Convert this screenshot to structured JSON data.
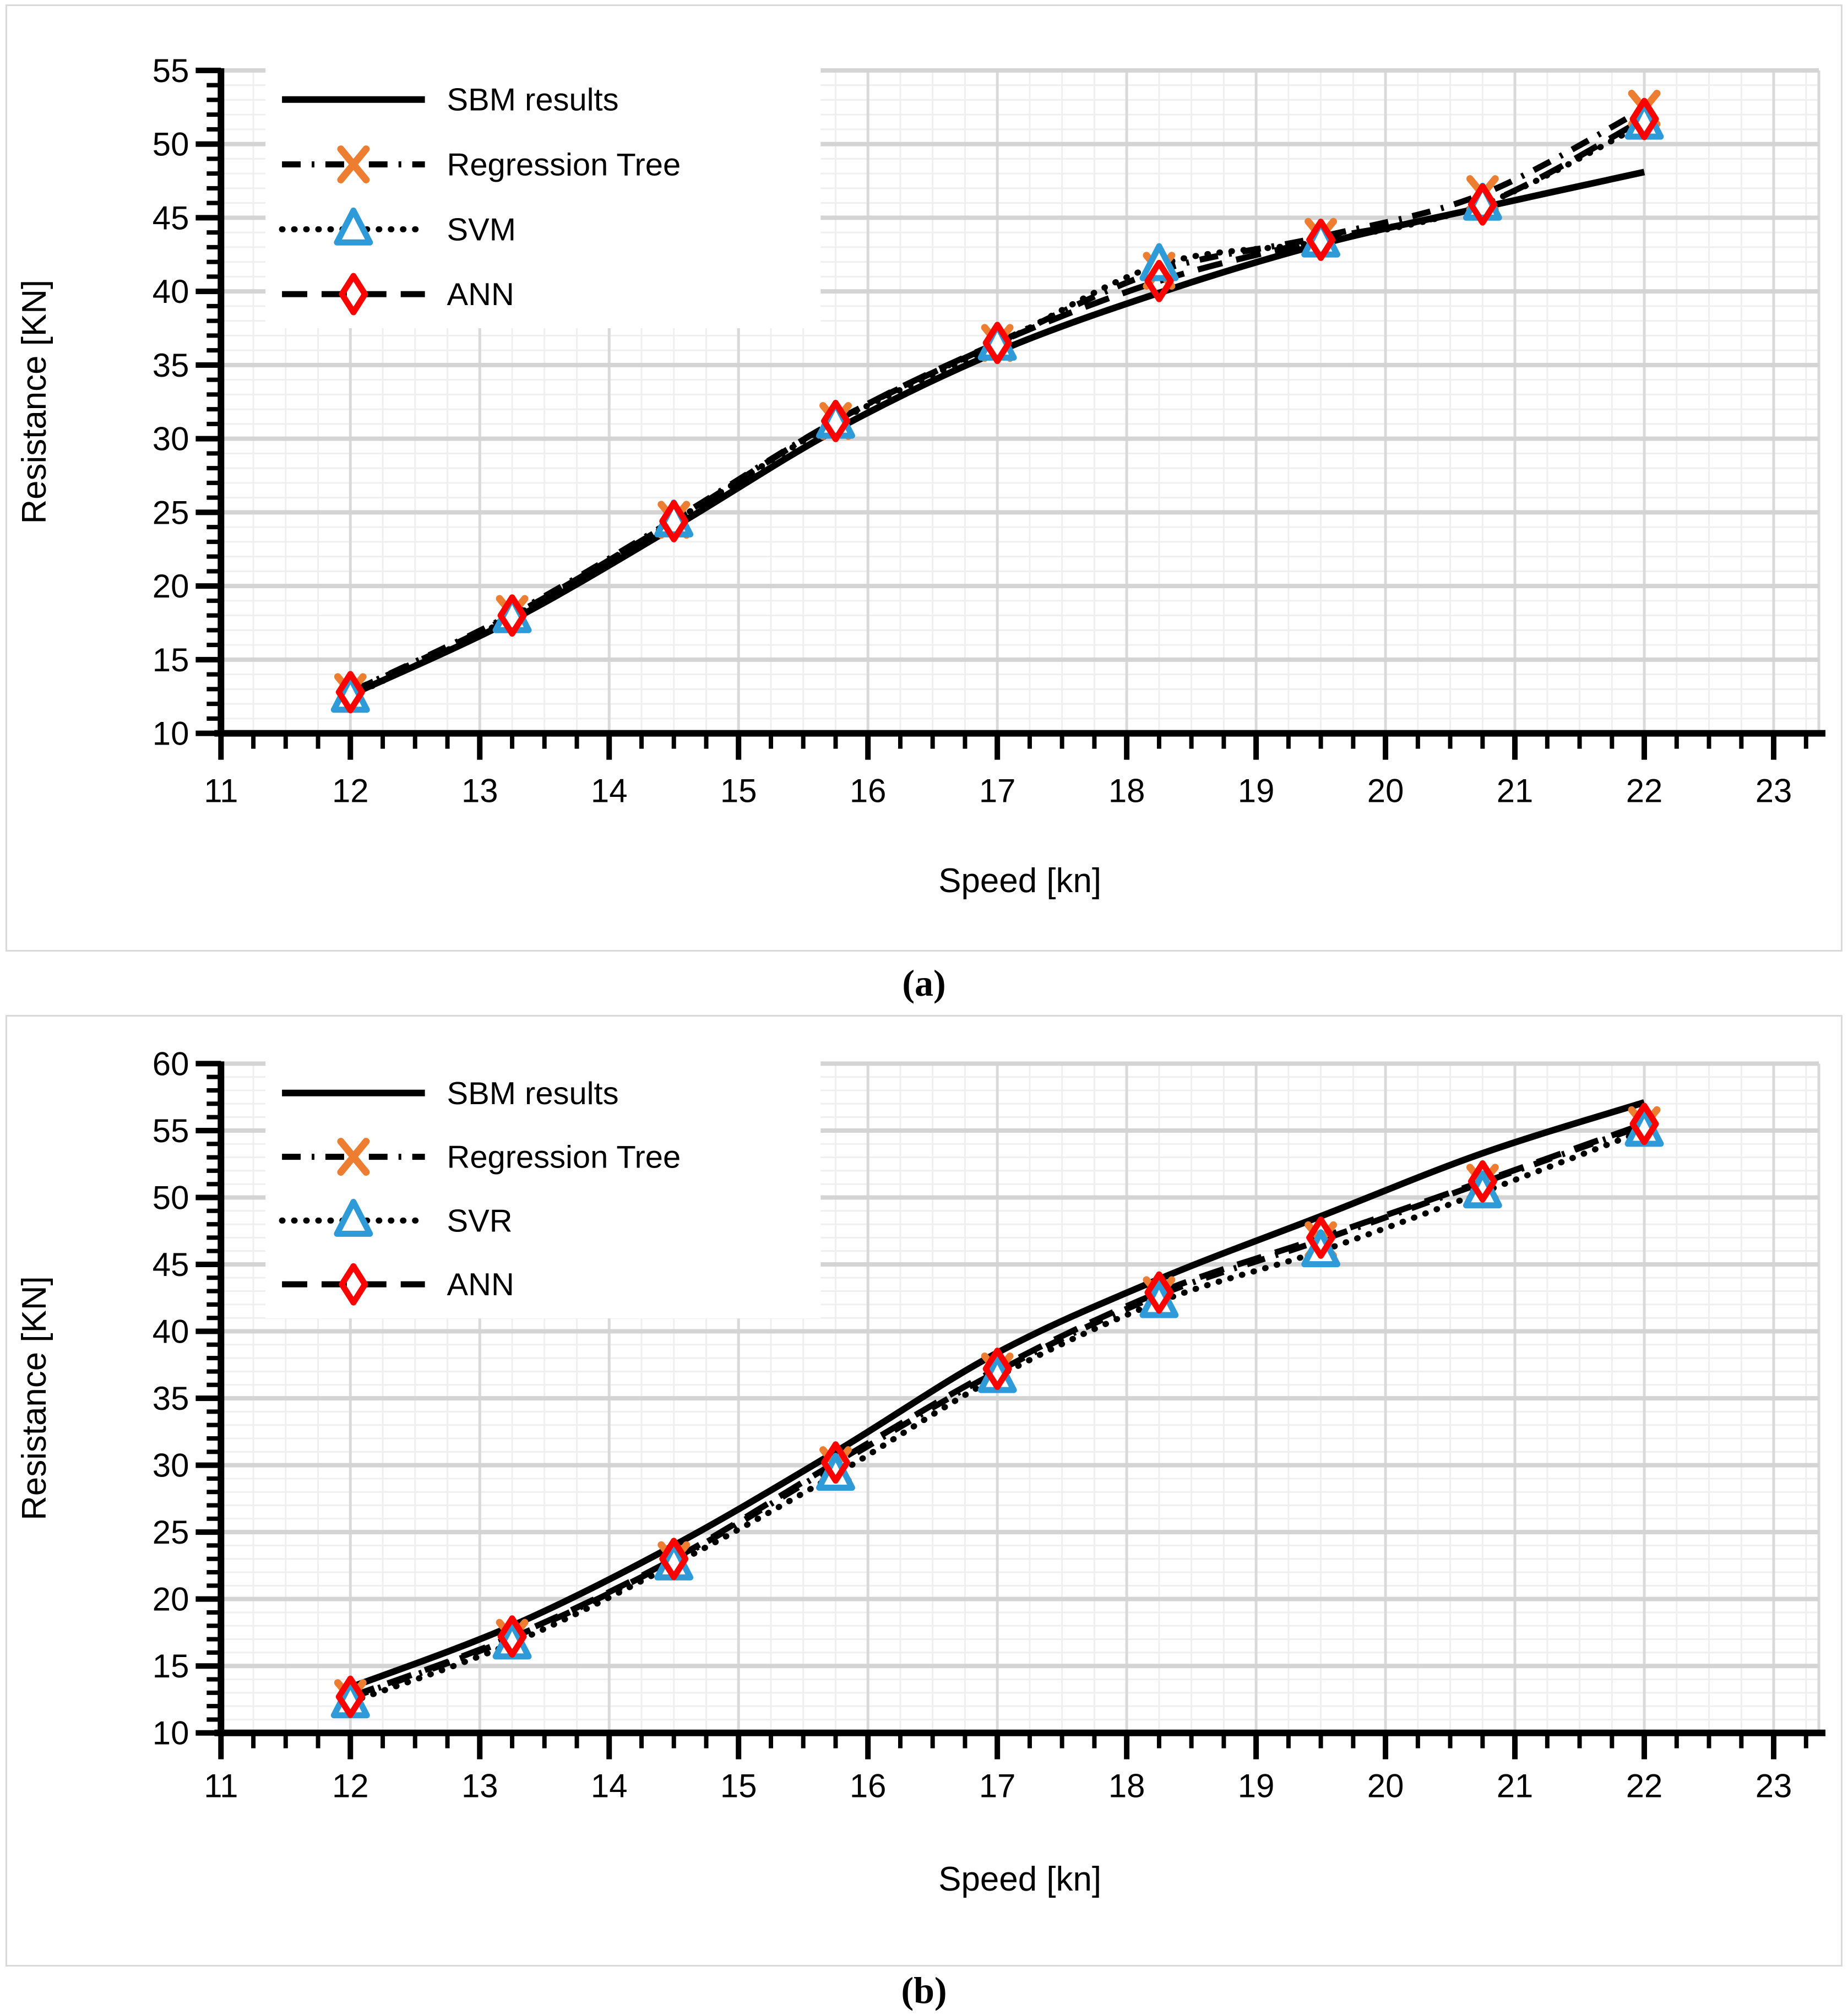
{
  "figure": {
    "captions": [
      "(a)",
      "(b)"
    ]
  },
  "colors": {
    "line_black": "#000000",
    "regression_tree_marker": "#ED7D31",
    "svm_marker": "#2E9BD8",
    "ann_marker": "#FF0000",
    "grid_minor": "#efefef",
    "grid_major_h": "#d4d4d4",
    "grid_major_v": "#d9d9d9",
    "panel_border": "#d9d9d9"
  },
  "chart_data": [
    {
      "type": "line",
      "title": "",
      "xlabel": "Speed [kn]",
      "ylabel": "Resistance [KN]",
      "xlim": [
        11,
        23.35
      ],
      "ylim": [
        10,
        55
      ],
      "x_ticks": [
        11,
        12,
        13,
        14,
        15,
        16,
        17,
        18,
        19,
        20,
        21,
        22,
        23
      ],
      "y_ticks": [
        10,
        15,
        20,
        25,
        30,
        35,
        40,
        45,
        50,
        55
      ],
      "grid": {
        "x_minor_step": 0.25,
        "x_major_step": 1,
        "y_minor_step": 1,
        "y_major_step": 5
      },
      "legend_position": "top-left",
      "x": [
        12,
        13.25,
        14.5,
        15.75,
        17,
        18.25,
        19.5,
        20.75,
        22
      ],
      "series": [
        {
          "name": "SBM results",
          "line": "solid",
          "marker": null,
          "color": "#000000",
          "marker_color": null,
          "values": [
            12.6,
            17.7,
            24.0,
            30.6,
            35.9,
            39.9,
            43.2,
            45.7,
            48.1
          ]
        },
        {
          "name": "Regression Tree",
          "line": "dashdot",
          "marker": "x",
          "color": "#000000",
          "marker_color": "#ED7D31",
          "values": [
            12.8,
            18.1,
            24.5,
            31.2,
            36.5,
            41.4,
            43.7,
            46.6,
            52.4
          ]
        },
        {
          "name": "SVM",
          "line": "dotted",
          "marker": "triangle",
          "color": "#000000",
          "marker_color": "#2E9BD8",
          "values": [
            12.5,
            17.9,
            24.4,
            31.1,
            36.4,
            41.8,
            43.4,
            45.9,
            51.4
          ]
        },
        {
          "name": "ANN",
          "line": "dashed",
          "marker": "diamond",
          "color": "#000000",
          "marker_color": "#FF0000",
          "values": [
            12.8,
            18.0,
            24.4,
            31.2,
            36.5,
            40.7,
            43.5,
            45.9,
            51.7
          ]
        }
      ]
    },
    {
      "type": "line",
      "title": "",
      "xlabel": "Speed [kn]",
      "ylabel": "Resistance [KN]",
      "xlim": [
        11,
        23.35
      ],
      "ylim": [
        10,
        60
      ],
      "x_ticks": [
        11,
        12,
        13,
        14,
        15,
        16,
        17,
        18,
        19,
        20,
        21,
        22,
        23
      ],
      "y_ticks": [
        10,
        15,
        20,
        25,
        30,
        35,
        40,
        45,
        50,
        55,
        60
      ],
      "grid": {
        "x_minor_step": 0.25,
        "x_major_step": 1,
        "y_minor_step": 1,
        "y_major_step": 5
      },
      "legend_position": "top-left",
      "x": [
        12,
        13.25,
        14.5,
        15.75,
        17,
        18.25,
        19.5,
        20.75,
        22
      ],
      "series": [
        {
          "name": "SBM results",
          "line": "solid",
          "marker": null,
          "color": "#000000",
          "marker_color": null,
          "values": [
            13.4,
            18.0,
            24.0,
            31.0,
            38.4,
            43.9,
            48.6,
            53.3,
            57.1
          ]
        },
        {
          "name": "Regression Tree",
          "line": "dashdot",
          "marker": "x",
          "color": "#000000",
          "marker_color": "#ED7D31",
          "values": [
            12.6,
            17.1,
            22.9,
            30.0,
            37.0,
            42.7,
            46.8,
            51.1,
            55.4
          ]
        },
        {
          "name": "SVR",
          "line": "dotted",
          "marker": "triangle",
          "color": "#000000",
          "marker_color": "#2E9BD8",
          "values": [
            12.3,
            16.7,
            22.6,
            29.3,
            36.6,
            42.2,
            46.0,
            50.4,
            55.0
          ]
        },
        {
          "name": "ANN",
          "line": "dashed",
          "marker": "diamond",
          "color": "#000000",
          "marker_color": "#FF0000",
          "values": [
            12.7,
            17.2,
            23.0,
            30.2,
            37.2,
            42.9,
            47.0,
            51.2,
            55.5
          ]
        }
      ]
    }
  ]
}
